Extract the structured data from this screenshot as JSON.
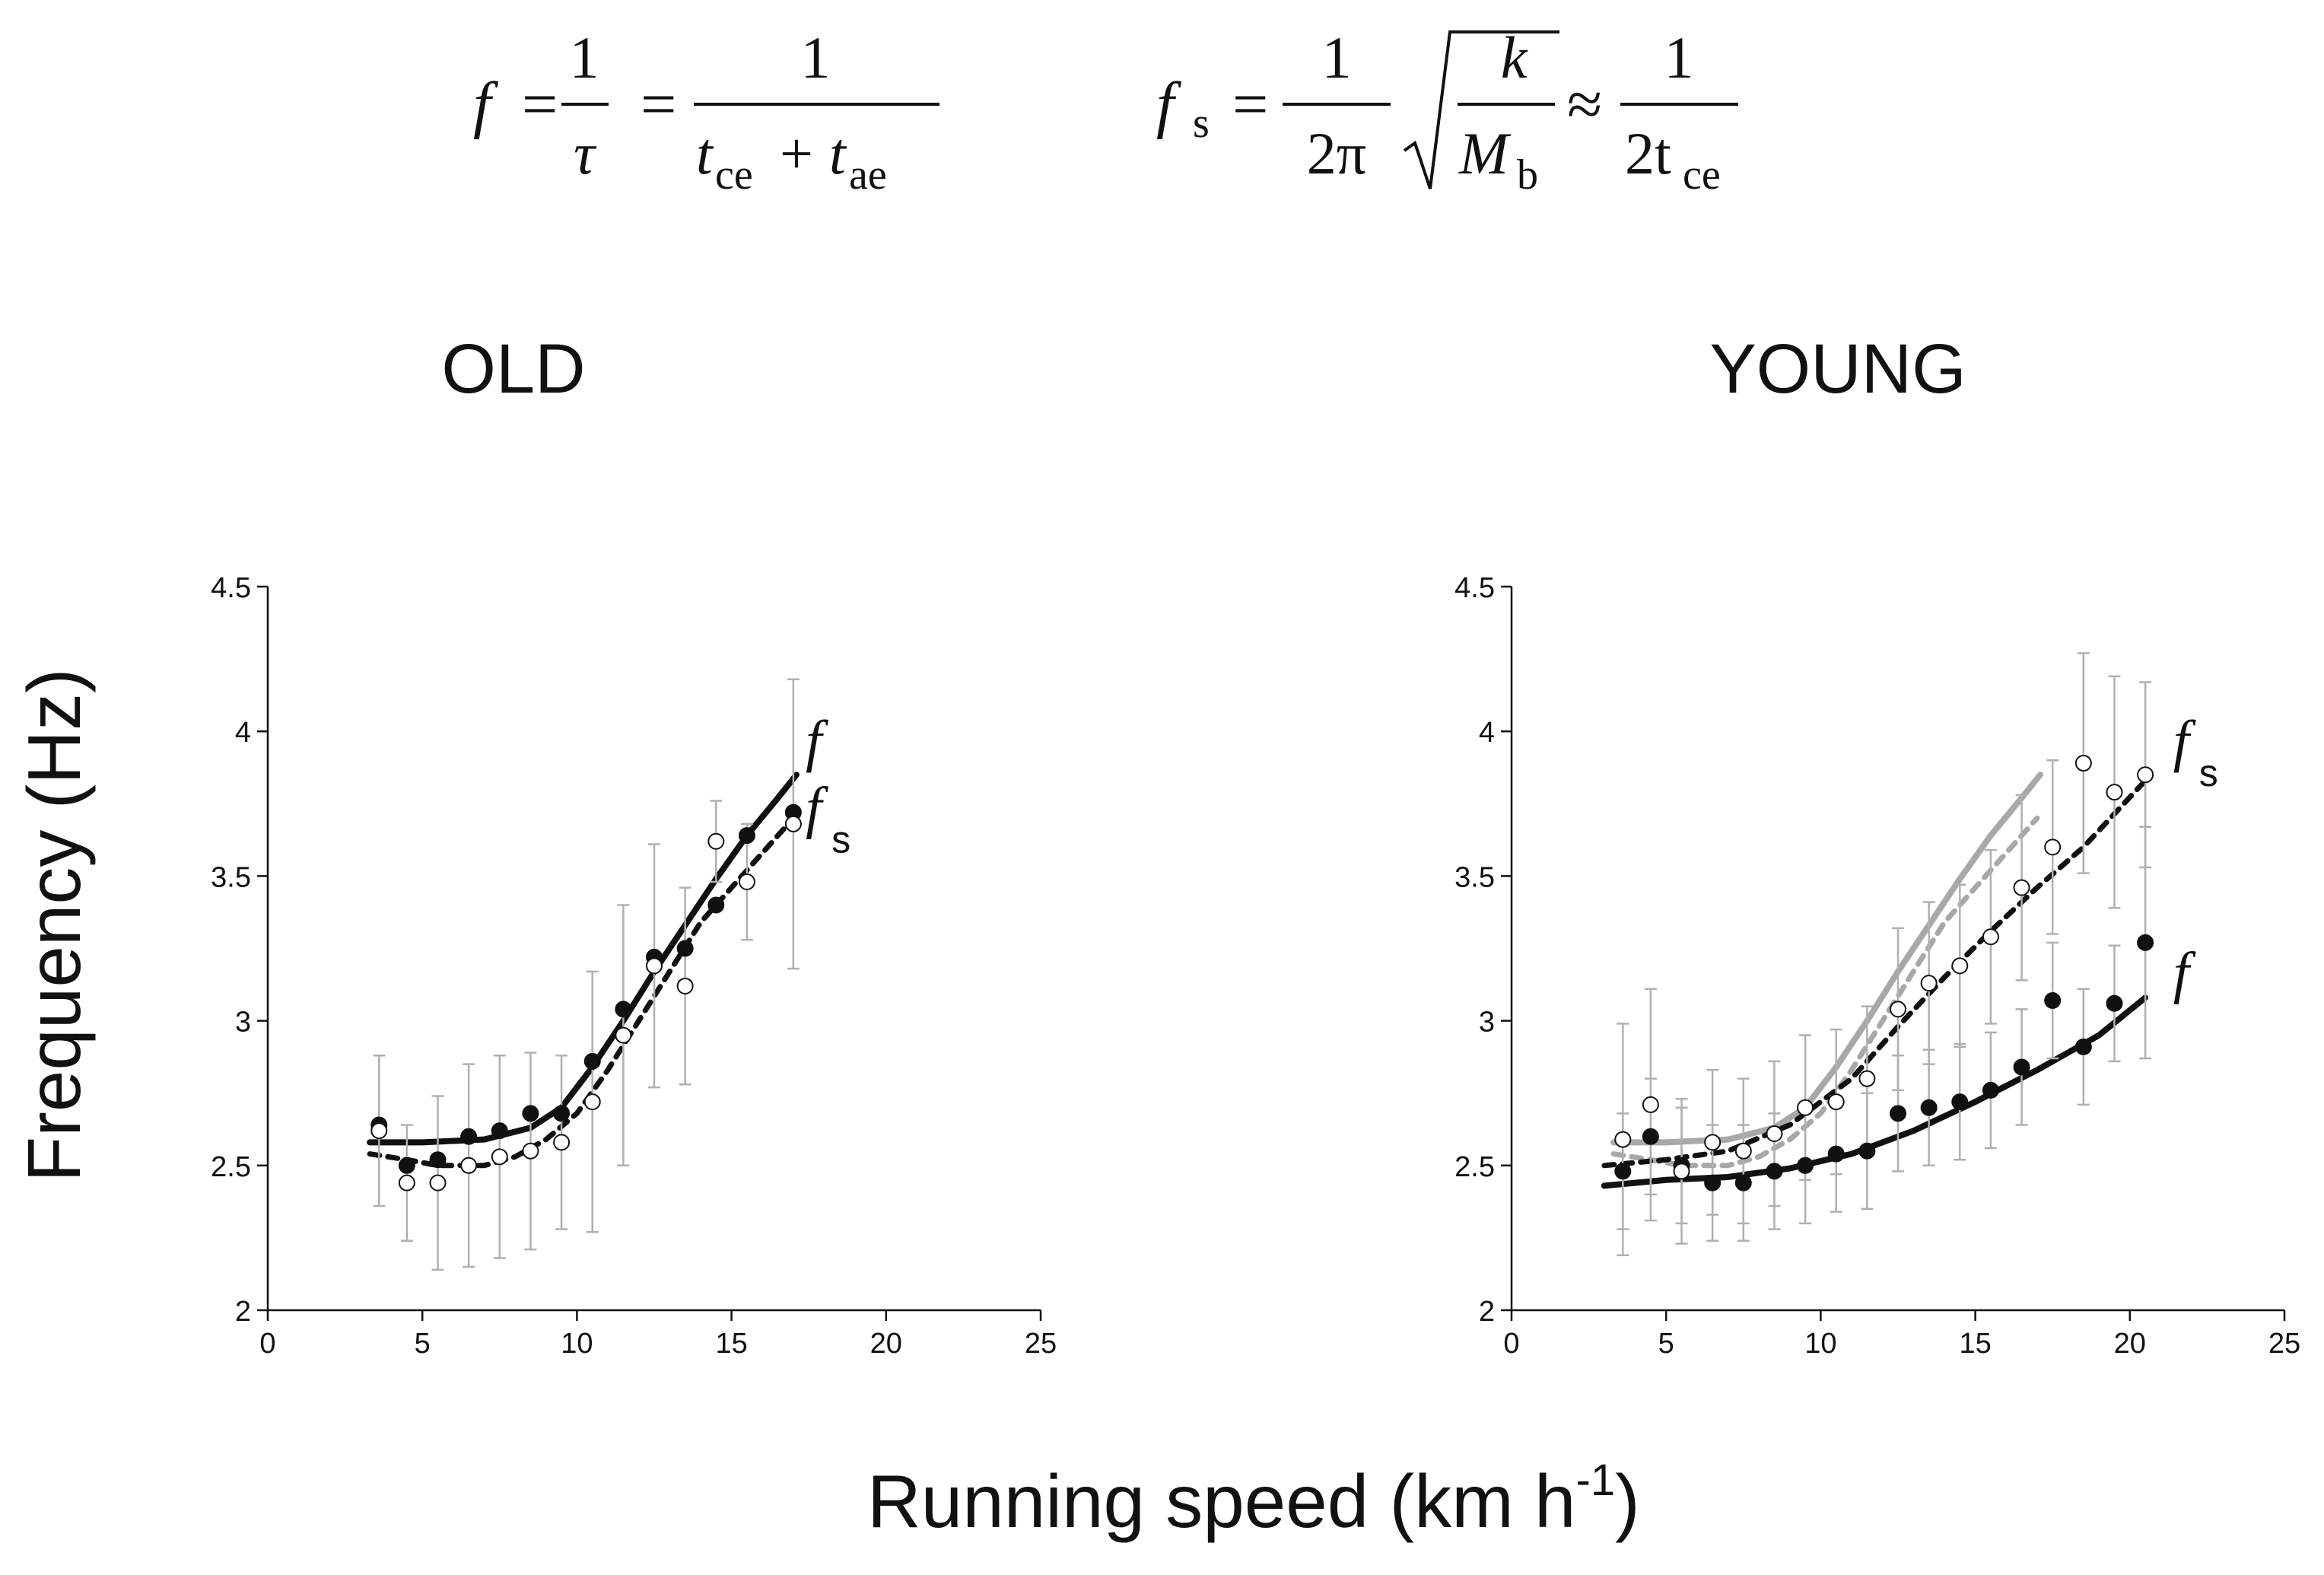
{
  "equations": {
    "eq1": {
      "lhs": "f",
      "num1": "1",
      "den1": "τ",
      "num2": "1",
      "den2_t1": "t",
      "den2_s1": "ce",
      "den2_plus": "+",
      "den2_t2": "t",
      "den2_s2": "ae"
    },
    "eq2": {
      "lhs": "f",
      "lhs_sub": "s",
      "num1": "1",
      "den1": "2π",
      "rad_num": "k",
      "rad_den": "M",
      "rad_den_sub": "b",
      "approx": "≈",
      "num2": "1",
      "den2": "2t",
      "den2_sub": "ce"
    },
    "equals": "="
  },
  "axes": {
    "y_title": "Frequency (Hz)",
    "x_title_main": "Running speed (km h",
    "x_title_sup": "-1",
    "x_title_close": ")",
    "x_ticks": [
      "0",
      "5",
      "10",
      "15",
      "20",
      "25"
    ],
    "y_ticks": [
      "2",
      "2.5",
      "3",
      "3.5",
      "4",
      "4.5"
    ]
  },
  "colors": {
    "black": "#111111",
    "grey": "#a8a8a8",
    "errorbar": "#b0b0b0"
  },
  "chart_data": [
    {
      "id": "old",
      "type": "scatter",
      "title": "OLD",
      "xlabel": "Running speed (km h-1)",
      "ylabel": "Frequency (Hz)",
      "xlim": [
        0,
        25
      ],
      "ylim": [
        2,
        4.5
      ],
      "labels": [
        {
          "main": "f",
          "sub": "",
          "x": 17.4,
          "y": 3.9
        },
        {
          "main": "f",
          "sub": "s",
          "x": 17.4,
          "y": 3.67
        }
      ],
      "series": [
        {
          "name": "f",
          "marker": "filled",
          "color": "#111111",
          "points": [
            [
              3.6,
              2.64
            ],
            [
              4.5,
              2.5
            ],
            [
              5.5,
              2.52
            ],
            [
              6.5,
              2.6
            ],
            [
              7.5,
              2.62
            ],
            [
              8.5,
              2.68
            ],
            [
              9.5,
              2.68
            ],
            [
              10.5,
              2.86
            ],
            [
              11.5,
              3.04
            ],
            [
              12.5,
              3.22
            ],
            [
              13.5,
              3.25
            ],
            [
              14.5,
              3.4
            ],
            [
              15.5,
              3.64
            ],
            [
              17.0,
              3.72
            ]
          ]
        },
        {
          "name": "fs",
          "marker": "open",
          "color": "#111111",
          "points": [
            [
              3.6,
              2.62
            ],
            [
              4.5,
              2.44
            ],
            [
              5.5,
              2.44
            ],
            [
              6.5,
              2.5
            ],
            [
              7.5,
              2.53
            ],
            [
              8.5,
              2.55
            ],
            [
              9.5,
              2.58
            ],
            [
              10.5,
              2.72
            ],
            [
              11.5,
              2.95
            ],
            [
              12.5,
              3.19
            ],
            [
              13.5,
              3.12
            ],
            [
              14.5,
              3.62
            ],
            [
              15.5,
              3.48
            ],
            [
              17.0,
              3.68
            ]
          ],
          "errors": [
            0.26,
            0.2,
            0.3,
            0.35,
            0.35,
            0.34,
            0.3,
            0.45,
            0.45,
            0.42,
            0.34,
            0.14,
            0.2,
            0.5
          ]
        },
        {
          "name": "f fit",
          "line": "solid",
          "color": "#111111",
          "curve": [
            [
              3.3,
              2.58
            ],
            [
              5.0,
              2.58
            ],
            [
              7.0,
              2.59
            ],
            [
              8.5,
              2.63
            ],
            [
              9.5,
              2.7
            ],
            [
              10.5,
              2.84
            ],
            [
              11.5,
              3.0
            ],
            [
              12.5,
              3.17
            ],
            [
              13.5,
              3.33
            ],
            [
              14.5,
              3.49
            ],
            [
              15.5,
              3.64
            ],
            [
              16.5,
              3.77
            ],
            [
              17.1,
              3.85
            ]
          ]
        },
        {
          "name": "fs fit",
          "line": "dashed",
          "color": "#111111",
          "curve": [
            [
              3.3,
              2.54
            ],
            [
              4.5,
              2.52
            ],
            [
              5.5,
              2.5
            ],
            [
              7.0,
              2.5
            ],
            [
              8.0,
              2.53
            ],
            [
              9.0,
              2.59
            ],
            [
              10.0,
              2.68
            ],
            [
              11.0,
              2.83
            ],
            [
              12.0,
              3.0
            ],
            [
              13.0,
              3.17
            ],
            [
              14.0,
              3.34
            ],
            [
              15.0,
              3.46
            ],
            [
              16.0,
              3.58
            ],
            [
              17.0,
              3.7
            ]
          ]
        }
      ]
    },
    {
      "id": "young",
      "type": "scatter",
      "title": "YOUNG",
      "xlabel": "Running speed (km h-1)",
      "ylabel": "Frequency (Hz)",
      "xlim": [
        0,
        25
      ],
      "ylim": [
        2,
        4.5
      ],
      "labels": [
        {
          "main": "f",
          "sub": "s",
          "x": 21.4,
          "y": 3.9
        },
        {
          "main": "f",
          "sub": "",
          "x": 21.4,
          "y": 3.1
        }
      ],
      "series": [
        {
          "name": "f",
          "marker": "filled",
          "color": "#111111",
          "points": [
            [
              3.6,
              2.48
            ],
            [
              4.5,
              2.6
            ],
            [
              5.5,
              2.5
            ],
            [
              6.5,
              2.44
            ],
            [
              7.5,
              2.44
            ],
            [
              8.5,
              2.48
            ],
            [
              9.5,
              2.5
            ],
            [
              10.5,
              2.54
            ],
            [
              11.5,
              2.55
            ],
            [
              12.5,
              2.68
            ],
            [
              13.5,
              2.7
            ],
            [
              14.5,
              2.72
            ],
            [
              15.5,
              2.76
            ],
            [
              16.5,
              2.84
            ],
            [
              17.5,
              3.07
            ],
            [
              18.5,
              2.91
            ],
            [
              19.5,
              3.06
            ],
            [
              20.5,
              3.27
            ]
          ],
          "errors": [
            0.2,
            0.2,
            0.2,
            0.2,
            0.2,
            0.2,
            0.2,
            0.2,
            0.2,
            0.2,
            0.2,
            0.2,
            0.2,
            0.2,
            0.2,
            0.2,
            0.2,
            0.4
          ]
        },
        {
          "name": "fs",
          "marker": "open",
          "color": "#111111",
          "points": [
            [
              3.6,
              2.59
            ],
            [
              4.5,
              2.71
            ],
            [
              5.5,
              2.48
            ],
            [
              6.5,
              2.58
            ],
            [
              7.5,
              2.55
            ],
            [
              8.5,
              2.61
            ],
            [
              9.5,
              2.7
            ],
            [
              10.5,
              2.72
            ],
            [
              11.5,
              2.8
            ],
            [
              12.5,
              3.04
            ],
            [
              13.5,
              3.13
            ],
            [
              14.5,
              3.19
            ],
            [
              15.5,
              3.29
            ],
            [
              16.5,
              3.46
            ],
            [
              17.5,
              3.6
            ],
            [
              18.5,
              3.89
            ],
            [
              19.5,
              3.79
            ],
            [
              20.5,
              3.85
            ]
          ],
          "errors": [
            0.4,
            0.4,
            0.25,
            0.25,
            0.25,
            0.25,
            0.25,
            0.25,
            0.25,
            0.28,
            0.28,
            0.28,
            0.3,
            0.32,
            0.3,
            0.38,
            0.4,
            0.32
          ]
        },
        {
          "name": "f fit",
          "line": "solid",
          "color": "#111111",
          "curve": [
            [
              3.0,
              2.43
            ],
            [
              5.0,
              2.45
            ],
            [
              7.0,
              2.46
            ],
            [
              9.0,
              2.49
            ],
            [
              11.0,
              2.54
            ],
            [
              13.0,
              2.62
            ],
            [
              15.0,
              2.72
            ],
            [
              17.0,
              2.83
            ],
            [
              19.0,
              2.95
            ],
            [
              20.5,
              3.08
            ]
          ]
        },
        {
          "name": "fs fit",
          "line": "dashed",
          "color": "#111111",
          "curve": [
            [
              3.0,
              2.5
            ],
            [
              5.0,
              2.52
            ],
            [
              7.0,
              2.55
            ],
            [
              9.0,
              2.64
            ],
            [
              11.0,
              2.8
            ],
            [
              12.5,
              2.98
            ],
            [
              14.0,
              3.15
            ],
            [
              15.5,
              3.31
            ],
            [
              17.0,
              3.46
            ],
            [
              18.5,
              3.6
            ],
            [
              20.5,
              3.83
            ]
          ]
        },
        {
          "name": "f (OLD) fit",
          "line": "solid",
          "color": "#a8a8a8",
          "curve": [
            [
              3.3,
              2.58
            ],
            [
              5.0,
              2.58
            ],
            [
              7.0,
              2.59
            ],
            [
              8.5,
              2.63
            ],
            [
              9.5,
              2.7
            ],
            [
              10.5,
              2.84
            ],
            [
              11.5,
              3.0
            ],
            [
              12.5,
              3.17
            ],
            [
              13.5,
              3.33
            ],
            [
              14.5,
              3.49
            ],
            [
              15.5,
              3.64
            ],
            [
              16.5,
              3.77
            ],
            [
              17.1,
              3.85
            ]
          ]
        },
        {
          "name": "fs (OLD) fit",
          "line": "dashed",
          "color": "#a8a8a8",
          "curve": [
            [
              3.3,
              2.54
            ],
            [
              4.5,
              2.52
            ],
            [
              5.5,
              2.5
            ],
            [
              7.0,
              2.5
            ],
            [
              8.0,
              2.53
            ],
            [
              9.0,
              2.59
            ],
            [
              10.0,
              2.68
            ],
            [
              11.0,
              2.83
            ],
            [
              12.0,
              3.0
            ],
            [
              13.0,
              3.17
            ],
            [
              14.0,
              3.34
            ],
            [
              15.0,
              3.46
            ],
            [
              16.0,
              3.58
            ],
            [
              17.0,
              3.7
            ]
          ]
        }
      ]
    }
  ]
}
